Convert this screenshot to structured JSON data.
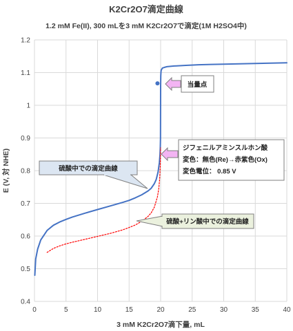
{
  "chart_data": {
    "type": "line",
    "title": "K2Cr2O7滴定曲線",
    "subtitle": "1.2 mM Fe(II), 300 mLを3 mM K2Cr2O7で滴定(1M H2SO4中)",
    "xlabel": "3 mM K2Cr2O7滴下量, mL",
    "ylabel": "E (V, 対 NHE)",
    "xlim": [
      0,
      40
    ],
    "ylim": [
      0.4,
      1.2
    ],
    "x_ticks": [
      "0",
      "5",
      "10",
      "15",
      "20",
      "25",
      "30",
      "35",
      "40"
    ],
    "y_ticks": [
      "0.4",
      "0.5",
      "0.6",
      "0.7",
      "0.8",
      "0.9",
      "1",
      "1.1",
      "1.2"
    ],
    "grid": true,
    "series": [
      {
        "color": "#4472c4",
        "style": "solid",
        "x": [
          0.05,
          0.2,
          0.5,
          1,
          2,
          3,
          4,
          5,
          6,
          8,
          10,
          12,
          14,
          15,
          16,
          17,
          18,
          18.5,
          19,
          19.3,
          19.6,
          19.8,
          19.9,
          19.95,
          19.98,
          20.0,
          20.02,
          20.05,
          20.1,
          20.3,
          20.6,
          21,
          22,
          24,
          26,
          28,
          30,
          35,
          40
        ],
        "y": [
          0.48,
          0.53,
          0.56,
          0.588,
          0.617,
          0.633,
          0.643,
          0.651,
          0.658,
          0.67,
          0.681,
          0.692,
          0.703,
          0.709,
          0.717,
          0.726,
          0.738,
          0.746,
          0.76,
          0.773,
          0.796,
          0.825,
          0.85,
          0.87,
          0.9,
          1.06,
          1.09,
          1.102,
          1.108,
          1.114,
          1.116,
          1.118,
          1.12,
          1.122,
          1.124,
          1.125,
          1.126,
          1.128,
          1.13
        ]
      },
      {
        "color": "#ff0000",
        "style": "dotted",
        "x": [
          2,
          3,
          4,
          5,
          6,
          8,
          10,
          12,
          14,
          15,
          16,
          17,
          18,
          18.5,
          19,
          19.5,
          19.7,
          19.85,
          19.95,
          20.0
        ],
        "y": [
          0.55,
          0.562,
          0.57,
          0.576,
          0.581,
          0.59,
          0.599,
          0.608,
          0.619,
          0.626,
          0.634,
          0.645,
          0.66,
          0.671,
          0.688,
          0.72,
          0.745,
          0.775,
          0.815,
          0.87
        ]
      }
    ],
    "markers": [
      {
        "x": 19.5,
        "y": 1.067,
        "color": "#4472c4"
      }
    ],
    "annotations": {
      "equivalence": {
        "text": "当量点"
      },
      "indicator": {
        "lines": [
          "ジフェニルアミンスルホン酸",
          "変色：無色(Re)→赤紫色(Ox)",
          "変色電位： 0.85 V"
        ]
      },
      "sulfuric": {
        "text": "硫酸中での滴定曲線"
      },
      "phosphoric": {
        "text": "硫酸+リン酸中での滴定曲線"
      }
    }
  }
}
